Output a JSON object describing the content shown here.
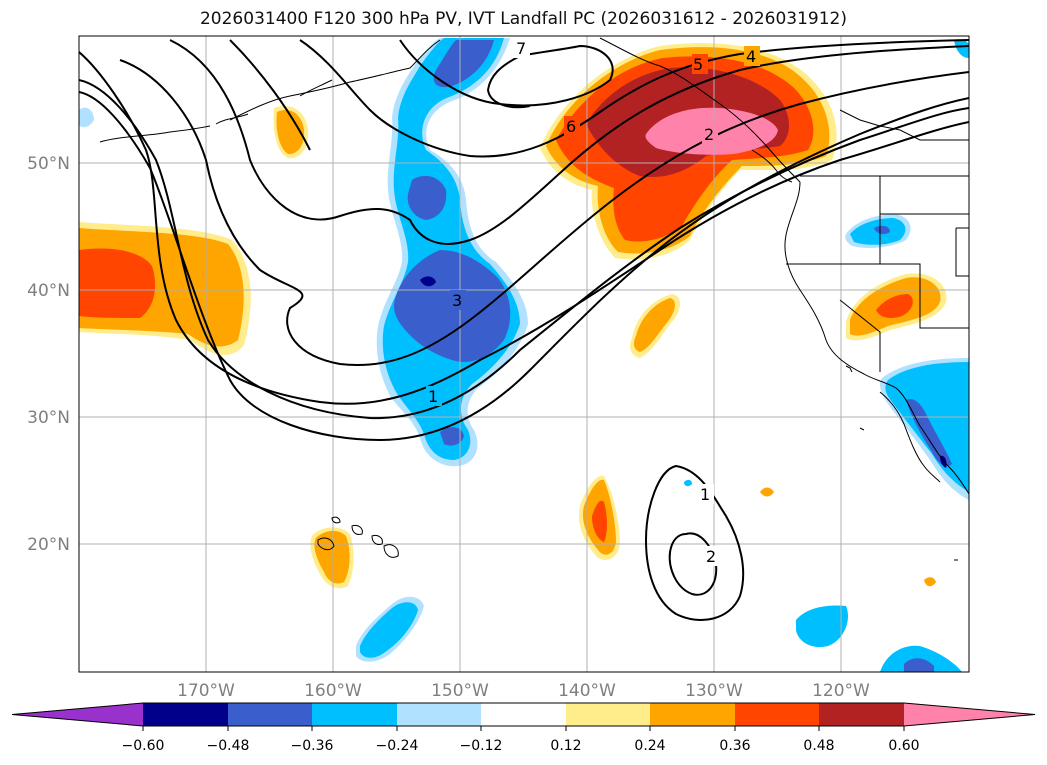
{
  "title": "2026031400 F120 300 hPa PV, IVT Landfall PC (2026031612 - 2026031912)",
  "lon_labels": [
    "170°W",
    "160°W",
    "150°W",
    "140°W",
    "130°W",
    "120°W"
  ],
  "lat_labels": [
    "50°N",
    "40°N",
    "30°N",
    "20°N"
  ],
  "contour_labels": [
    "7",
    "5",
    "4",
    "6",
    "2",
    "3",
    "1",
    "1",
    "2"
  ],
  "colorbar": {
    "labels": [
      "−0.60",
      "−0.48",
      "−0.36",
      "−0.24",
      "−0.12",
      "0.12",
      "0.24",
      "0.36",
      "0.48",
      "0.60"
    ],
    "colors": [
      "#9932cc",
      "#00008b",
      "#3a5fcd",
      "#00bfff",
      "#b0e2ff",
      "#ffffff",
      "#ffec8b",
      "#ffa500",
      "#ff4500",
      "#b22222",
      "#ff82ab"
    ]
  }
}
